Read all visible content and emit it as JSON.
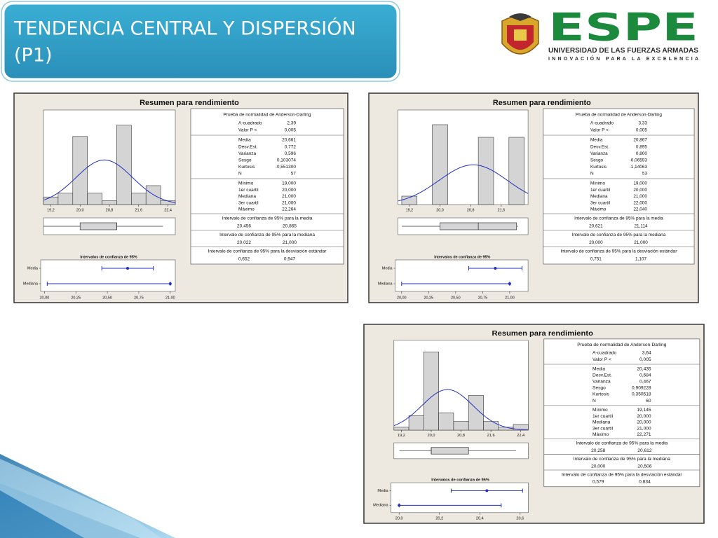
{
  "header": {
    "title_lines": [
      "TENDENCIA CENTRAL Y DISPERSIÓN",
      "(P1)"
    ]
  },
  "logo": {
    "name": "ESPE",
    "university": "UNIVERSIDAD DE LAS FUERZAS ARMADAS",
    "motto": "INNOVACIÓN PARA LA EXCELENCIA"
  },
  "chart_data": [
    {
      "type": "histogram",
      "title": "Resumen para rendimiento",
      "color": "#d4d4d4",
      "curve_color": "#1f2fbf",
      "bins": [
        19.0,
        19.4,
        19.8,
        20.2,
        20.6,
        21.0,
        21.4,
        21.8,
        22.2,
        22.6
      ],
      "counts": [
        2,
        3,
        18,
        3,
        1,
        21,
        3,
        5,
        1
      ],
      "xlim": [
        19.0,
        22.6
      ],
      "ylim": [
        0,
        25
      ],
      "xticks": [
        {
          "value": 19.2,
          "label": "19,2"
        },
        {
          "value": 20.0,
          "label": "20,0"
        },
        {
          "value": 20.8,
          "label": "20,8"
        },
        {
          "value": 21.6,
          "label": "21,6"
        },
        {
          "value": 22.4,
          "label": "22,4"
        }
      ],
      "normality": {
        "title": "Prueba de normalidad de Anderson-Darling",
        "rows": [
          {
            "label": "A-cuadrado",
            "value": {
              "value": 2.39,
              "label": "2,39"
            }
          },
          {
            "label": "Valor P <",
            "value": {
              "value": 0.005,
              "label": "0,005"
            }
          }
        ]
      },
      "stats": [
        {
          "label": "Media",
          "value": {
            "value": 20.661,
            "label": "20,661"
          }
        },
        {
          "label": "Desv.Est.",
          "value": {
            "value": 0.772,
            "label": "0,772"
          }
        },
        {
          "label": "Varianza",
          "value": {
            "value": 0.596,
            "label": "0,596"
          }
        },
        {
          "label": "Sesgo",
          "value": {
            "value": 0.103074,
            "label": "0,103074"
          }
        },
        {
          "label": "Kurtosis",
          "value": {
            "value": -0.5513,
            "label": "-0,551300"
          }
        },
        {
          "label": "N",
          "value": 57
        }
      ],
      "quantiles": [
        {
          "label": "Mínimo",
          "value": {
            "value": 19.0,
            "label": "19,000"
          }
        },
        {
          "label": "1er cuartil",
          "value": {
            "value": 20.0,
            "label": "20,000"
          }
        },
        {
          "label": "Mediana",
          "value": {
            "value": 21.0,
            "label": "21,000"
          }
        },
        {
          "label": "3er cuartil",
          "value": {
            "value": 21.0,
            "label": "21,000"
          }
        },
        {
          "label": "Máximo",
          "value": {
            "value": 22.264,
            "label": "22,264"
          }
        }
      ],
      "intervals": [
        {
          "title": "Intervalo de confianza de 95% para la media",
          "low": {
            "value": 20.456,
            "label": "20,456"
          },
          "high": {
            "value": 20.865,
            "label": "20,865"
          }
        },
        {
          "title": "Intervalo de confianza de 95% para la mediana",
          "low": {
            "value": 20.022,
            "label": "20,022"
          },
          "high": {
            "value": 21.0,
            "label": "21,000"
          }
        },
        {
          "title": "Intervalo de confianza de 95% para la desviación estándar",
          "low": {
            "value": 0.652,
            "label": "0,652"
          },
          "high": {
            "value": 0.947,
            "label": "0,947"
          }
        }
      ],
      "ci_plot": {
        "title": "Intervalos de confianza de 95%",
        "rows": [
          "Media",
          "Mediana"
        ],
        "xlim": [
          19.97,
          21.04
        ],
        "xticks": [
          {
            "value": 20.0,
            "label": "20,00"
          },
          {
            "value": 20.25,
            "label": "20,25"
          },
          {
            "value": 20.5,
            "label": "20,50"
          },
          {
            "value": 20.75,
            "label": "20,75"
          },
          {
            "value": 21.0,
            "label": "21,00"
          }
        ]
      }
    },
    {
      "type": "histogram",
      "title": "Resumen para rendimiento",
      "color": "#d4d4d4",
      "curve_color": "#1f2fbf",
      "bins": [
        19.0,
        19.4,
        19.8,
        20.2,
        20.6,
        21.0,
        21.4,
        21.8,
        22.2
      ],
      "counts": [
        2,
        0,
        19,
        0,
        0,
        16,
        0,
        16
      ],
      "xlim": [
        18.9,
        22.3
      ],
      "ylim": [
        0,
        22.5
      ],
      "xticks": [
        {
          "value": 19.2,
          "label": "19,2"
        },
        {
          "value": 20.0,
          "label": "20,0"
        },
        {
          "value": 20.8,
          "label": "20,8"
        },
        {
          "value": 21.6,
          "label": "21,6"
        }
      ],
      "normality": {
        "title": "Prueba de normalidad de Anderson-Darling",
        "rows": [
          {
            "label": "A-cuadrado",
            "value": {
              "value": 3.33,
              "label": "3,33"
            }
          },
          {
            "label": "Valor P <",
            "value": {
              "value": 0.005,
              "label": "0,005"
            }
          }
        ]
      },
      "stats": [
        {
          "label": "Media",
          "value": {
            "value": 20.867,
            "label": "20,867"
          }
        },
        {
          "label": "Desv.Est.",
          "value": {
            "value": 0.895,
            "label": "0,895"
          }
        },
        {
          "label": "Varianza",
          "value": {
            "value": 0.8,
            "label": "0,800"
          }
        },
        {
          "label": "Sesgo",
          "value": {
            "value": -0.06593,
            "label": "-0,06593"
          }
        },
        {
          "label": "Kurtosis",
          "value": {
            "value": -1.14063,
            "label": "-1,14063"
          }
        },
        {
          "label": "N",
          "value": 53
        }
      ],
      "quantiles": [
        {
          "label": "Mínimo",
          "value": {
            "value": 19.0,
            "label": "19,000"
          }
        },
        {
          "label": "1er cuartil",
          "value": {
            "value": 20.0,
            "label": "20,000"
          }
        },
        {
          "label": "Mediana",
          "value": {
            "value": 21.0,
            "label": "21,000"
          }
        },
        {
          "label": "3er cuartil",
          "value": {
            "value": 22.0,
            "label": "22,000"
          }
        },
        {
          "label": "Máximo",
          "value": {
            "value": 22.04,
            "label": "22,040"
          }
        }
      ],
      "intervals": [
        {
          "title": "Intervalo de confianza de 95% para la media",
          "low": {
            "value": 20.621,
            "label": "20,621"
          },
          "high": {
            "value": 21.114,
            "label": "21,114"
          }
        },
        {
          "title": "Intervalo de confianza de 95% para la mediana",
          "low": {
            "value": 20.0,
            "label": "20,000"
          },
          "high": {
            "value": 21.0,
            "label": "21,000"
          }
        },
        {
          "title": "Intervalo de confianza de 95% para la desviación estándar",
          "low": {
            "value": 0.751,
            "label": "0,751"
          },
          "high": {
            "value": 1.107,
            "label": "1,107"
          }
        }
      ],
      "ci_plot": {
        "title": "Intervalos de confianza de 95%",
        "rows": [
          "Media",
          "Mediana"
        ],
        "xlim": [
          19.94,
          21.17
        ],
        "xticks": [
          {
            "value": 20.0,
            "label": "20,00"
          },
          {
            "value": 20.25,
            "label": "20,25"
          },
          {
            "value": 20.5,
            "label": "20,50"
          },
          {
            "value": 20.75,
            "label": "20,75"
          },
          {
            "value": 21.0,
            "label": "21,00"
          }
        ]
      }
    },
    {
      "type": "histogram",
      "title": "Resumen para rendimiento",
      "color": "#d4d4d4",
      "curve_color": "#1f2fbf",
      "bins": [
        19.0,
        19.4,
        19.8,
        20.2,
        20.6,
        21.0,
        21.4,
        21.8,
        22.2,
        22.6
      ],
      "counts": [
        1,
        5,
        27,
        6,
        3,
        12,
        3,
        1,
        2
      ],
      "xlim": [
        19.0,
        22.6
      ],
      "ylim": [
        0,
        31
      ],
      "xticks": [
        {
          "value": 19.2,
          "label": "19,2"
        },
        {
          "value": 20.0,
          "label": "20,0"
        },
        {
          "value": 20.8,
          "label": "20,8"
        },
        {
          "value": 21.6,
          "label": "21,6"
        },
        {
          "value": 22.4,
          "label": "22,4"
        }
      ],
      "normality": {
        "title": "Prueba de normalidad de Anderson-Darling",
        "rows": [
          {
            "label": "A-cuadrado",
            "value": {
              "value": 3.64,
              "label": "3,64"
            }
          },
          {
            "label": "Valor P <",
            "value": {
              "value": 0.005,
              "label": "0,005"
            }
          }
        ]
      },
      "stats": [
        {
          "label": "Media",
          "value": {
            "value": 20.435,
            "label": "20,435"
          }
        },
        {
          "label": "Desv.Est.",
          "value": {
            "value": 0.684,
            "label": "0,684"
          }
        },
        {
          "label": "Varianza",
          "value": {
            "value": 0.467,
            "label": "0,467"
          }
        },
        {
          "label": "Sesgo",
          "value": {
            "value": 0.909228,
            "label": "0,909228"
          }
        },
        {
          "label": "Kurtosis",
          "value": {
            "value": 0.350518,
            "label": "0,350518"
          }
        },
        {
          "label": "N",
          "value": 60
        }
      ],
      "quantiles": [
        {
          "label": "Mínimo",
          "value": {
            "value": 19.145,
            "label": "19,145"
          }
        },
        {
          "label": "1er cuartil",
          "value": {
            "value": 20.0,
            "label": "20,000"
          }
        },
        {
          "label": "Mediana",
          "value": {
            "value": 20.0,
            "label": "20,000"
          }
        },
        {
          "label": "3er cuartil",
          "value": {
            "value": 21.0,
            "label": "21,000"
          }
        },
        {
          "label": "Máximo",
          "value": {
            "value": 22.271,
            "label": "22,271"
          }
        }
      ],
      "intervals": [
        {
          "title": "Intervalo de confianza de 95% para la media",
          "low": {
            "value": 20.258,
            "label": "20,258"
          },
          "high": {
            "value": 20.612,
            "label": "20,612"
          }
        },
        {
          "title": "Intervalo de confianza de 95% para la mediana",
          "low": {
            "value": 20.0,
            "label": "20,000"
          },
          "high": {
            "value": 20.506,
            "label": "20,506"
          }
        },
        {
          "title": "Intervalo de confianza de 95% para la desviación estándar",
          "low": {
            "value": 0.579,
            "label": "0,579"
          },
          "high": {
            "value": 0.834,
            "label": "0,834"
          }
        }
      ],
      "ci_plot": {
        "title": "Intervalos de confianza de 95%",
        "rows": [
          "Media",
          "Mediana"
        ],
        "xlim": [
          19.96,
          20.64
        ],
        "xticks": [
          {
            "value": 20.0,
            "label": "20,0"
          },
          {
            "value": 20.2,
            "label": "20,2"
          },
          {
            "value": 20.4,
            "label": "20,4"
          },
          {
            "value": 20.6,
            "label": "20,6"
          }
        ]
      }
    }
  ]
}
